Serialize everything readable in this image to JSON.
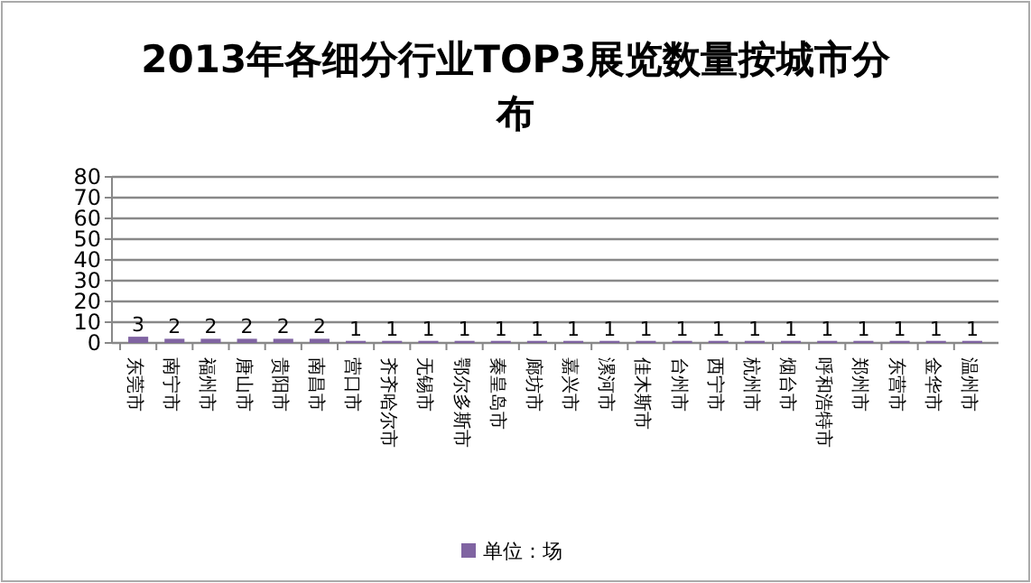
{
  "chart_data": {
    "type": "bar",
    "title": "2013年各细分行业TOP3展览数量按城市分布",
    "categories": [
      "东莞市",
      "南宁市",
      "福州市",
      "唐山市",
      "贵阳市",
      "南昌市",
      "营口市",
      "齐齐哈尔市",
      "无锡市",
      "鄂尔多斯市",
      "秦皇岛市",
      "廊坊市",
      "嘉兴市",
      "漯河市",
      "佳木斯市",
      "台州市",
      "西宁市",
      "杭州市",
      "烟台市",
      "呼和浩特市",
      "郑州市",
      "东营市",
      "金华市",
      "温州市"
    ],
    "series": [
      {
        "name": "单位：场",
        "color": "#8064a2",
        "values": [
          3,
          2,
          2,
          2,
          2,
          2,
          1,
          1,
          1,
          1,
          1,
          1,
          1,
          1,
          1,
          1,
          1,
          1,
          1,
          1,
          1,
          1,
          1,
          1
        ]
      }
    ],
    "ylim": [
      0,
      80
    ],
    "yticks": [
      0,
      10,
      20,
      30,
      40,
      50,
      60,
      70,
      80
    ],
    "grid": "y",
    "legend": "bottom",
    "data_labels": true
  }
}
